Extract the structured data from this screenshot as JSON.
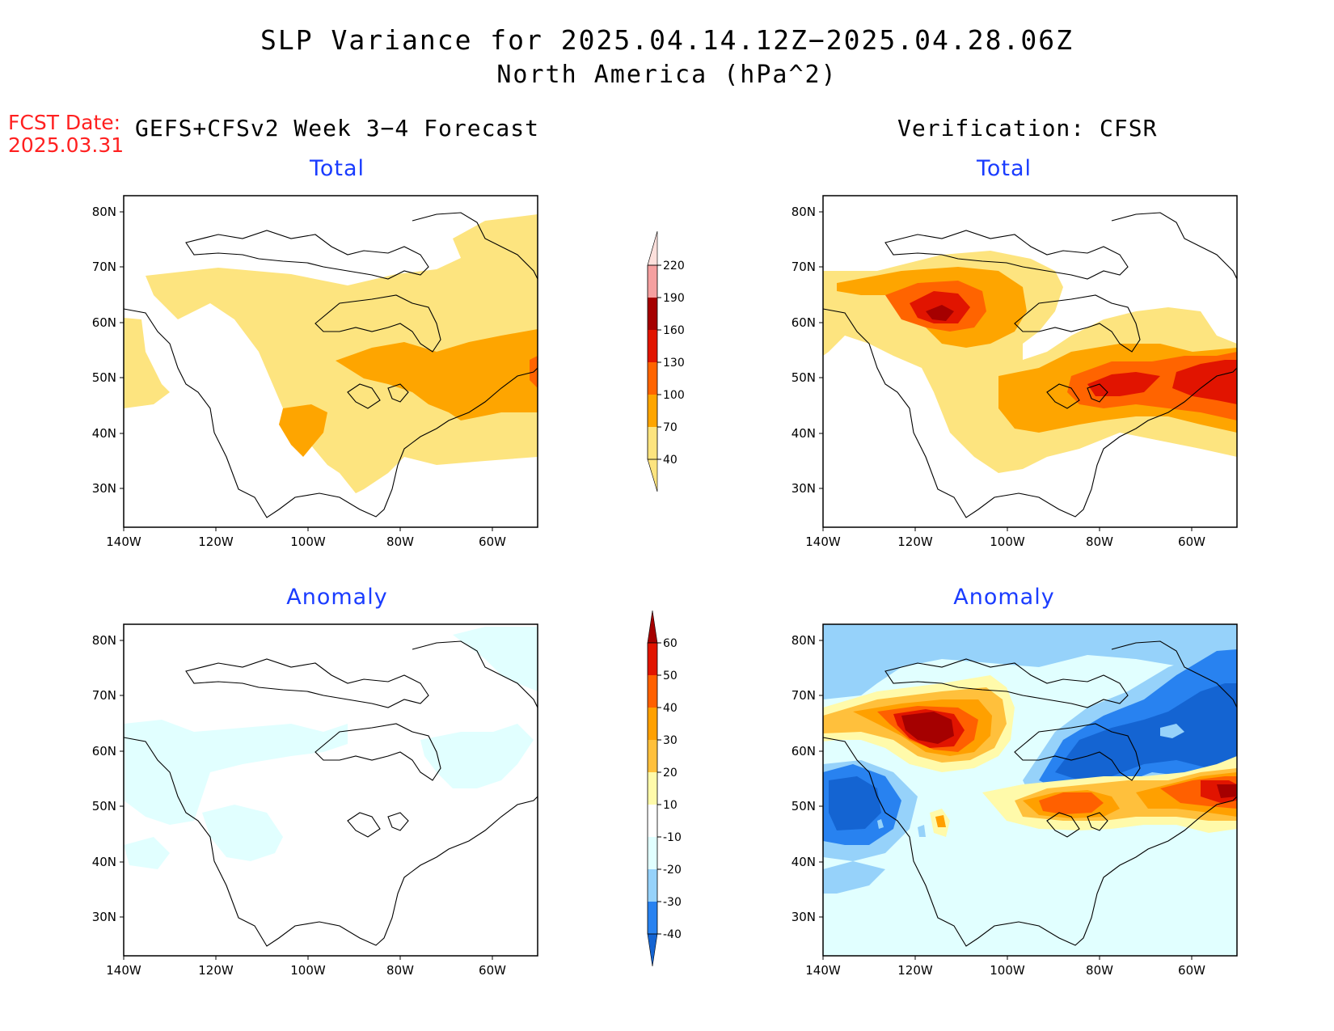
{
  "title": "SLP Variance for 2025.04.14.12Z−2025.04.28.06Z",
  "subtitle": "North America (hPa^2)",
  "fcst_date_label": "FCST Date:",
  "fcst_date_value": "2025.03.31",
  "left_header": "GEFS+CFSv2 Week 3−4 Forecast",
  "right_header": "Verification: CFSR",
  "panel_titles": {
    "top_left": "Total",
    "top_right": "Total",
    "bottom_left": "Anomaly",
    "bottom_right": "Anomaly"
  },
  "map_axes": {
    "lat_labels": [
      "80N",
      "70N",
      "60N",
      "50N",
      "40N",
      "30N"
    ],
    "lon_labels": [
      "140W",
      "120W",
      "100W",
      "80W",
      "60W"
    ],
    "lat_values": [
      80,
      70,
      60,
      50,
      40,
      30
    ],
    "lon_values": [
      -140,
      -120,
      -100,
      -80,
      -60
    ]
  },
  "total_colorbar": {
    "labels": [
      "40",
      "70",
      "100",
      "130",
      "160",
      "190",
      "220"
    ],
    "colors": [
      "#fde47f",
      "#fea500",
      "#ff6400",
      "#e11400",
      "#a50000",
      "#f5a0a0",
      "#fde0dc"
    ]
  },
  "anomaly_colorbar": {
    "labels": [
      "-40",
      "-30",
      "-20",
      "-10",
      "10",
      "20",
      "30",
      "40",
      "50",
      "60"
    ],
    "colors": [
      "#1464d2",
      "#2882f0",
      "#96d2fa",
      "#e1ffff",
      "#ffffff",
      "#fffaaa",
      "#ffc03c",
      "#ffa000",
      "#ff6000",
      "#e11400",
      "#a50000"
    ]
  },
  "chart_data": [
    {
      "type": "heatmap",
      "panel": "GEFS+CFSv2 Week 3-4 Forecast / Total",
      "units": "hPa^2",
      "features": [
        {
          "region": "broad band 40N-72N across Canada",
          "level": "40-70"
        },
        {
          "region": "Hudson Bay south to Great Lakes and Atlantic Canada",
          "level": "70-100"
        },
        {
          "region": "Pacific off British Columbia",
          "level": "40-70"
        }
      ]
    },
    {
      "type": "heatmap",
      "panel": "Verification: CFSR / Total",
      "units": "hPa^2",
      "features": [
        {
          "region": "NW Canada near 62N 110W",
          "level": "160-190 max"
        },
        {
          "region": "Great Lakes to Atlantic Canada",
          "level": "130-160 max"
        }
      ]
    },
    {
      "type": "heatmap",
      "panel": "GEFS+CFSv2 Week 3-4 Forecast / Anomaly",
      "units": "hPa^2",
      "features": [
        {
          "region": "scattered western and eastern Canada",
          "level": "-20 to -10"
        }
      ]
    },
    {
      "type": "heatmap",
      "panel": "Verification: CFSR / Anomaly",
      "units": "hPa^2",
      "features": [
        {
          "region": "NW Canada near 62N 110W",
          "level": "> 60"
        },
        {
          "region": "Great Lakes and Atlantic Canada",
          "level": "40 to 60"
        },
        {
          "region": "Gulf of Alaska / BC coast",
          "level": "-40 to -30"
        },
        {
          "region": "Hudson Bay to Greenland",
          "level": "-40 to -30"
        }
      ]
    }
  ]
}
